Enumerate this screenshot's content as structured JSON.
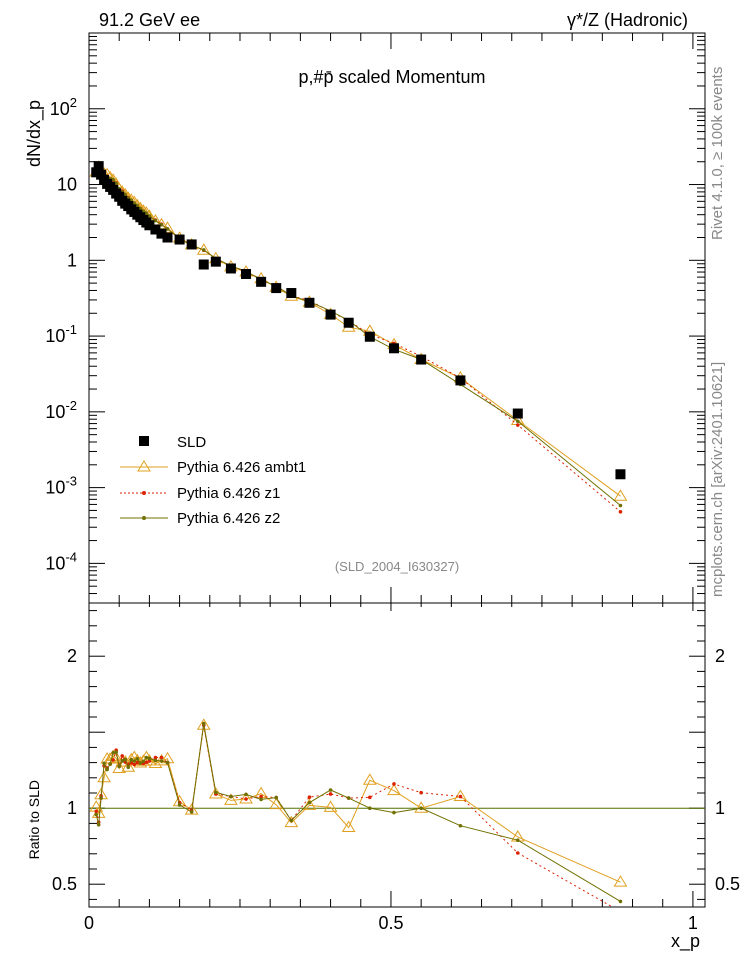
{
  "header": {
    "left": "91.2 GeV ee",
    "right": "γ*/Z (Hadronic)"
  },
  "side": {
    "rivet": "Rivet 4.1.0, ≥ 100k events",
    "mcplots": "mcplots.cern.ch [arXiv:2401.10621]"
  },
  "chart_data": {
    "type": "scatter",
    "title": "p,#p̄ scaled Momentum",
    "analysis_id": "(SLD_2004_I630327)",
    "xlabel": "x_p",
    "ylabel": "dN/dx_p",
    "ratio_ylabel": "Ratio to SLD",
    "xlim": [
      0,
      1.02
    ],
    "ylim_log": [
      3e-05,
      1000
    ],
    "ratio_ylim": [
      0.35,
      2.35
    ],
    "x_ticks": [
      0,
      0.5,
      1
    ],
    "x_tick_labels": [
      "0",
      "0.5",
      "1"
    ],
    "y_tick_labels": [
      "10^-4",
      "10^-3",
      "10^-2",
      "10^-1",
      "1",
      "10",
      "10^2"
    ],
    "ratio_tick_labels": [
      "0.5",
      "1",
      "2"
    ],
    "x": [
      0.012,
      0.016,
      0.02,
      0.025,
      0.03,
      0.035,
      0.04,
      0.045,
      0.05,
      0.055,
      0.06,
      0.065,
      0.07,
      0.075,
      0.08,
      0.085,
      0.09,
      0.095,
      0.1,
      0.11,
      0.12,
      0.13,
      0.15,
      0.17,
      0.19,
      0.21,
      0.235,
      0.26,
      0.285,
      0.31,
      0.335,
      0.365,
      0.4,
      0.43,
      0.465,
      0.505,
      0.55,
      0.615,
      0.71,
      0.88
    ],
    "series": [
      {
        "name": "SLD",
        "color": "#000000",
        "values": [
          14.5,
          17.5,
          13.5,
          11.5,
          10.2,
          9.3,
          8.5,
          7.6,
          6.9,
          6.1,
          5.6,
          5.2,
          4.7,
          4.35,
          4.0,
          3.7,
          3.4,
          3.15,
          2.9,
          2.55,
          2.25,
          2.0,
          1.88,
          1.62,
          0.88,
          0.96,
          0.78,
          0.66,
          0.52,
          0.43,
          0.37,
          0.275,
          0.192,
          0.15,
          0.098,
          0.069,
          0.049,
          0.026,
          0.0095,
          0.0015
        ]
      },
      {
        "name": "Pythia 6.426 ambt1",
        "color": "#e0a020",
        "values": [
          14.6,
          16.9,
          14.7,
          13.8,
          13.5,
          12.3,
          11.4,
          10.1,
          8.7,
          7.95,
          7.3,
          6.6,
          6.2,
          5.8,
          5.25,
          4.8,
          4.45,
          4.2,
          3.8,
          3.3,
          2.95,
          2.65,
          1.96,
          1.6,
          1.36,
          1.05,
          0.82,
          0.7,
          0.57,
          0.44,
          0.335,
          0.28,
          0.193,
          0.131,
          0.116,
          0.077,
          0.049,
          0.028,
          0.0077,
          0.00077
        ]
      },
      {
        "name": "Pythia 6.426 z1",
        "color": "#dd2200",
        "values": [
          14.2,
          15.9,
          14.6,
          14.7,
          12.9,
          12.0,
          11.2,
          10.5,
          8.8,
          8.2,
          7.3,
          6.7,
          6.1,
          5.6,
          5.2,
          4.8,
          4.4,
          4.1,
          3.8,
          3.4,
          3.0,
          2.6,
          1.95,
          1.6,
          1.36,
          1.05,
          0.84,
          0.7,
          0.56,
          0.46,
          0.34,
          0.295,
          0.21,
          0.16,
          0.105,
          0.08,
          0.054,
          0.028,
          0.0067,
          0.00048
        ]
      },
      {
        "name": "Pythia 6.426 z2",
        "color": "#707000",
        "values": [
          13.9,
          15.6,
          14.4,
          14.9,
          12.8,
          12.0,
          11.6,
          10.4,
          8.8,
          8.0,
          7.4,
          6.6,
          6.2,
          5.7,
          5.3,
          4.8,
          4.45,
          4.2,
          3.85,
          3.35,
          2.95,
          2.6,
          1.92,
          1.58,
          1.37,
          1.06,
          0.84,
          0.72,
          0.55,
          0.46,
          0.34,
          0.285,
          0.215,
          0.16,
          0.098,
          0.067,
          0.049,
          0.023,
          0.0075,
          0.00058
        ]
      }
    ]
  }
}
